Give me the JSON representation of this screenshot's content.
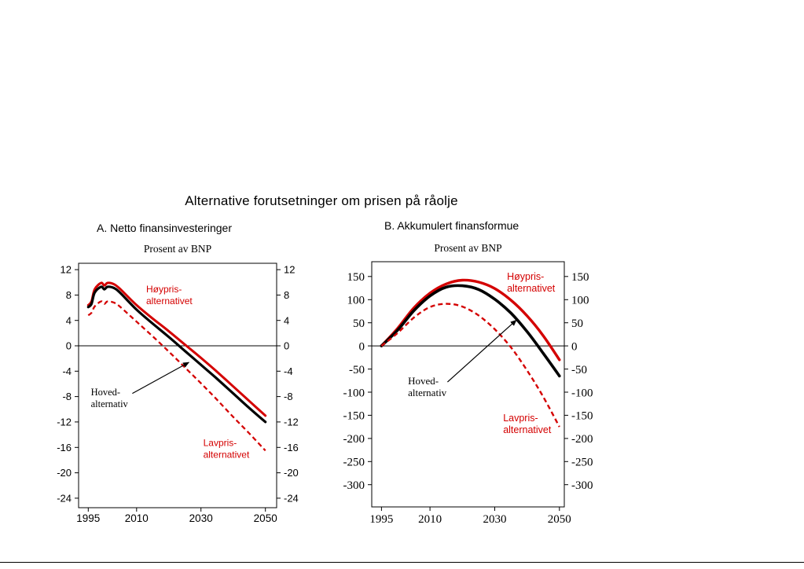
{
  "page": {
    "title": "Alternative forutsetninger om prisen på råolje"
  },
  "colors": {
    "line_red": "#d40000",
    "line_black": "#000000"
  },
  "chart_data": [
    {
      "type": "line",
      "title": "A. Netto finansinvesteringer",
      "subtitle": "Prosent av BNP",
      "xlabel": "",
      "ylabel": "Prosent av BNP",
      "xlim": [
        1992,
        2053.5
      ],
      "ylim": [
        -25.5,
        13
      ],
      "x_ticks": [
        1995,
        2010,
        2030,
        2050
      ],
      "y_ticks": [
        12,
        8,
        4,
        0,
        -4,
        -8,
        -12,
        -16,
        -20,
        -24
      ],
      "zero_line": true,
      "grid": false,
      "x": [
        1995,
        1996,
        1997,
        1999,
        2000,
        2001,
        2003,
        2005,
        2010,
        2015,
        2020,
        2025,
        2030,
        2035,
        2040,
        2045,
        2050
      ],
      "series": [
        {
          "name": "Høypris-alternativet",
          "color": "#d40000",
          "dash": false,
          "width": 3,
          "values": [
            6.4,
            7.0,
            8.9,
            9.9,
            9.5,
            9.9,
            9.7,
            8.9,
            6.4,
            4.3,
            2.3,
            0.2,
            -1.9,
            -4.1,
            -6.4,
            -8.7,
            -11.0
          ]
        },
        {
          "name": "Hovedalternativ",
          "color": "#000000",
          "dash": false,
          "width": 3.2,
          "values": [
            6.1,
            6.6,
            8.4,
            9.3,
            8.9,
            9.3,
            9.1,
            8.3,
            5.7,
            3.5,
            1.4,
            -0.8,
            -3.0,
            -5.2,
            -7.5,
            -9.8,
            -12.0
          ]
        },
        {
          "name": "Lavpris-alternativet",
          "color": "#d40000",
          "dash": true,
          "width": 2.3,
          "values": [
            4.8,
            5.2,
            6.2,
            7.0,
            6.6,
            7.0,
            6.8,
            6.1,
            3.8,
            1.5,
            -0.9,
            -3.4,
            -5.9,
            -8.5,
            -11.2,
            -13.8,
            -16.5
          ]
        }
      ],
      "labels": [
        {
          "lines": [
            "Høypris-",
            "alternativet"
          ],
          "x": 2013,
          "y": 8.4,
          "color": "#d40000",
          "font": "sans",
          "size": 12
        },
        {
          "lines": [
            "Hoved-",
            "alternativ"
          ],
          "x": 1995.8,
          "y": -7.8,
          "color": "#000000",
          "font": "serif",
          "size": 12.5
        },
        {
          "lines": [
            "Lavpris-",
            "alternativet"
          ],
          "x": 2030.7,
          "y": -15.8,
          "color": "#d40000",
          "font": "sans",
          "size": 12
        }
      ],
      "arrow": {
        "from": [
          2008.7,
          -7.5
        ],
        "to": [
          2026.3,
          -2.6
        ]
      }
    },
    {
      "type": "line",
      "title": "B. Akkumulert finansformue",
      "subtitle": "Prosent av BNP",
      "xlabel": "",
      "ylabel": "Prosent av BNP",
      "xlim": [
        1992,
        2051.5
      ],
      "ylim": [
        -348,
        182
      ],
      "x_ticks": [
        1995,
        2010,
        2030,
        2050
      ],
      "y_ticks": [
        150,
        100,
        50,
        0,
        -50,
        -100,
        -150,
        -200,
        -250,
        -300
      ],
      "zero_line": true,
      "grid": false,
      "x": [
        1995,
        2000,
        2005,
        2010,
        2015,
        2020,
        2025,
        2030,
        2035,
        2040,
        2045,
        2050
      ],
      "series": [
        {
          "name": "Høypris-alternativet",
          "color": "#d40000",
          "dash": false,
          "width": 3.4,
          "values": [
            0,
            38,
            82,
            114,
            134,
            142,
            138,
            124,
            99,
            65,
            22,
            -30
          ]
        },
        {
          "name": "Hovedalternativ",
          "color": "#000000",
          "dash": false,
          "width": 3.6,
          "values": [
            0,
            34,
            76,
            108,
            127,
            130,
            122,
            101,
            71,
            31,
            -16,
            -65
          ]
        },
        {
          "name": "Lavpris-alternativet",
          "color": "#d40000",
          "dash": true,
          "width": 2.4,
          "values": [
            0,
            28,
            61,
            84,
            91,
            85,
            66,
            36,
            -3,
            -53,
            -110,
            -175
          ]
        }
      ],
      "labels": [
        {
          "lines": [
            "Høypris-",
            "alternativet"
          ],
          "x": 2033.8,
          "y": 143,
          "color": "#d40000",
          "font": "sans",
          "size": 12.5
        },
        {
          "lines": [
            "Hoved-",
            "alternativ"
          ],
          "x": 2003.2,
          "y": -83,
          "color": "#000000",
          "font": "serif",
          "size": 13
        },
        {
          "lines": [
            "Lavpris-",
            "alternativet"
          ],
          "x": 2032.6,
          "y": -163,
          "color": "#d40000",
          "font": "sans",
          "size": 12.5
        }
      ],
      "arrow": {
        "from": [
          2015.4,
          -78
        ],
        "to": [
          2036.7,
          56
        ]
      }
    }
  ]
}
